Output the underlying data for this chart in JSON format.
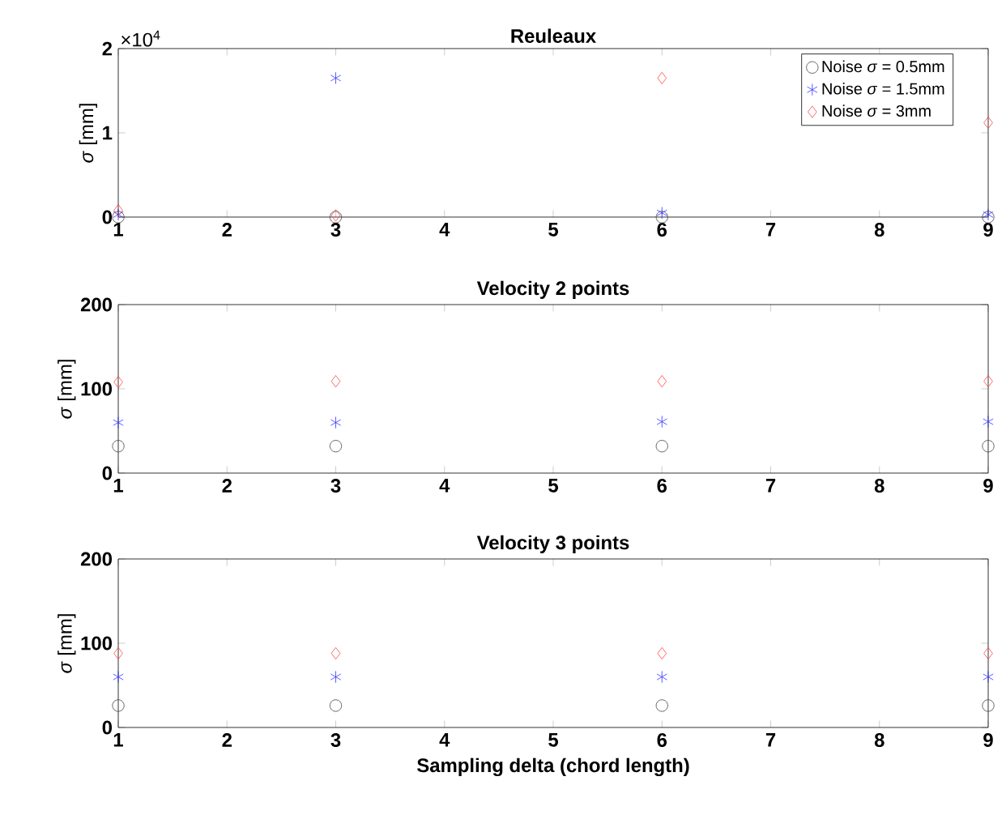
{
  "chart_data": [
    {
      "type": "scatter",
      "title": "Reuleaux",
      "ylabel": "*σ* [mm]",
      "annotations": [
        "×10$^{4}$"
      ],
      "x": [
        1,
        3,
        6,
        9
      ],
      "xlim": [
        1,
        9
      ],
      "xticks": [
        1,
        2,
        3,
        4,
        5,
        6,
        7,
        8,
        9
      ],
      "ylim": [
        0,
        2
      ],
      "yticks": [
        0,
        1,
        2
      ],
      "legend": "top right",
      "series": [
        {
          "name": "Noise *σ* = 0.5mm",
          "color": "#404040",
          "marker": "circle",
          "values": [
            0,
            0,
            0,
            0
          ]
        },
        {
          "name": "Noise *σ* = 1.5mm",
          "color": "#3333ff",
          "marker": "cross",
          "values": [
            0.03,
            1.65,
            0.05,
            0.03
          ]
        },
        {
          "name": "Noise *σ* = 3mm",
          "color": "#ff4444",
          "marker": "diamond",
          "values": [
            0.08,
            0.02,
            1.65,
            1.12
          ]
        }
      ]
    },
    {
      "type": "scatter",
      "title": "Velocity 2 points",
      "ylabel": "*σ* [mm]",
      "x": [
        1,
        3,
        6,
        9
      ],
      "xlim": [
        1,
        9
      ],
      "xticks": [
        1,
        2,
        3,
        4,
        5,
        6,
        7,
        8,
        9
      ],
      "ylim": [
        0,
        200
      ],
      "yticks": [
        0,
        100,
        200
      ],
      "series": [
        {
          "color": "#404040",
          "marker": "circle",
          "values": [
            32,
            32,
            32,
            32
          ]
        },
        {
          "color": "#3333ff",
          "marker": "cross",
          "values": [
            60,
            60,
            61,
            61
          ]
        },
        {
          "color": "#ff4444",
          "marker": "diamond",
          "values": [
            108,
            109,
            109,
            109
          ]
        }
      ]
    },
    {
      "type": "scatter",
      "title": "Velocity 3 points",
      "ylabel": "*σ* [mm]",
      "xlabel": "Sampling delta (chord length)",
      "x": [
        1,
        3,
        6,
        9
      ],
      "xlim": [
        1,
        9
      ],
      "xticks": [
        1,
        2,
        3,
        4,
        5,
        6,
        7,
        8,
        9
      ],
      "ylim": [
        0,
        200
      ],
      "yticks": [
        0,
        100,
        200
      ],
      "series": [
        {
          "color": "#404040",
          "marker": "circle",
          "values": [
            26,
            26,
            26,
            26
          ]
        },
        {
          "color": "#3333ff",
          "marker": "cross",
          "values": [
            60,
            60,
            60,
            60
          ]
        },
        {
          "color": "#ff4444",
          "marker": "diamond",
          "values": [
            88,
            88,
            88,
            88
          ]
        }
      ]
    }
  ]
}
